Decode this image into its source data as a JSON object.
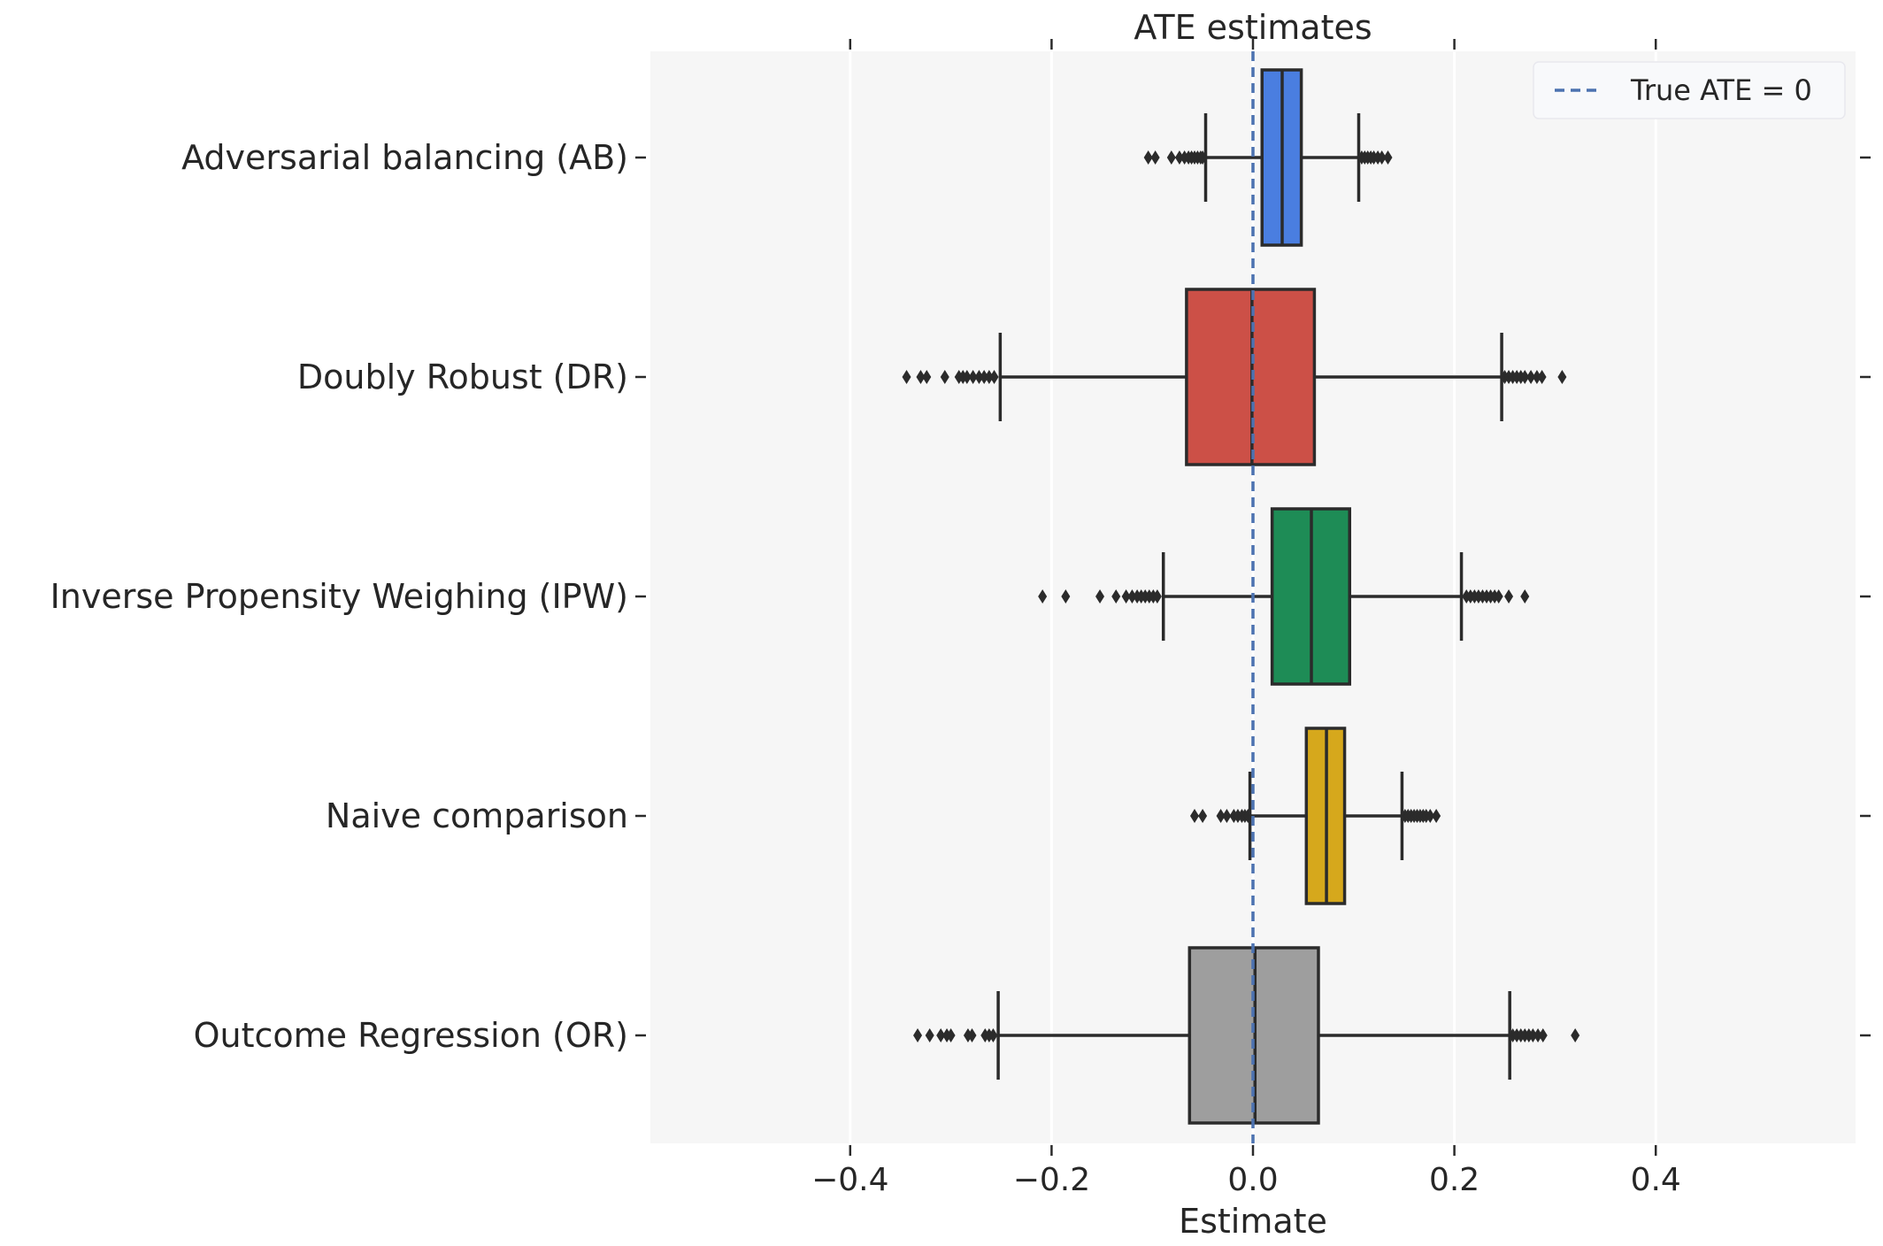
{
  "chart_data": {
    "type": "box",
    "orientation": "horizontal",
    "title": "ATE estimates",
    "xlabel": "Estimate",
    "ylabel": "",
    "xlim": [
      -0.6,
      0.6
    ],
    "xticks": [
      -0.4,
      -0.2,
      0.0,
      0.2,
      0.4
    ],
    "xtick_labels": [
      "−0.4",
      "−0.2",
      "0.0",
      "0.2",
      "0.4"
    ],
    "grid": true,
    "reference_line": {
      "value": 0,
      "style": "dashed",
      "color": "#4c72b0",
      "label": "True ATE = 0"
    },
    "legend": {
      "position": "top-right",
      "entries": [
        "True ATE = 0"
      ]
    },
    "series": [
      {
        "name": "Adversarial balancing (AB)",
        "color": "#4a7ee0",
        "whisker_low": -0.047,
        "q1": 0.009,
        "median": 0.029,
        "q3": 0.048,
        "whisker_high": 0.105,
        "outliers": [
          -0.104,
          -0.097,
          -0.081,
          -0.073,
          -0.068,
          -0.064,
          -0.061,
          -0.058,
          -0.055,
          -0.052,
          -0.05,
          0.108,
          0.111,
          0.114,
          0.117,
          0.12,
          0.124,
          0.128,
          0.134
        ]
      },
      {
        "name": "Doubly Robust (DR)",
        "color": "#cc5047",
        "whisker_low": -0.251,
        "q1": -0.066,
        "median": -0.001,
        "q3": 0.061,
        "whisker_high": 0.247,
        "outliers": [
          -0.344,
          -0.33,
          -0.324,
          -0.306,
          -0.292,
          -0.288,
          -0.284,
          -0.278,
          -0.272,
          -0.267,
          -0.262,
          -0.257,
          0.25,
          0.254,
          0.258,
          0.262,
          0.266,
          0.27,
          0.276,
          0.282,
          0.287,
          0.307
        ]
      },
      {
        "name": "Inverse Propensity Weighing (IPW)",
        "color": "#1e8c56",
        "whisker_low": -0.089,
        "q1": 0.019,
        "median": 0.058,
        "q3": 0.096,
        "whisker_high": 0.207,
        "outliers": [
          -0.209,
          -0.186,
          -0.152,
          -0.136,
          -0.126,
          -0.12,
          -0.115,
          -0.111,
          -0.107,
          -0.103,
          -0.099,
          -0.095,
          0.212,
          0.216,
          0.22,
          0.224,
          0.228,
          0.232,
          0.236,
          0.24,
          0.244,
          0.254,
          0.27
        ]
      },
      {
        "name": "Naive comparison",
        "color": "#d6a81c",
        "whisker_low": -0.003,
        "q1": 0.053,
        "median": 0.073,
        "q3": 0.091,
        "whisker_high": 0.148,
        "outliers": [
          -0.058,
          -0.05,
          -0.032,
          -0.026,
          -0.019,
          -0.015,
          -0.011,
          -0.008,
          -0.005,
          0.151,
          0.154,
          0.157,
          0.16,
          0.163,
          0.166,
          0.169,
          0.172,
          0.176,
          0.182
        ]
      },
      {
        "name": "Outcome Regression (OR)",
        "color": "#9e9e9e",
        "whisker_low": -0.253,
        "q1": -0.063,
        "median": 0.002,
        "q3": 0.065,
        "whisker_high": 0.255,
        "outliers": [
          -0.333,
          -0.321,
          -0.31,
          -0.304,
          -0.3,
          -0.283,
          -0.279,
          -0.266,
          -0.262,
          -0.258,
          0.258,
          0.262,
          0.266,
          0.27,
          0.274,
          0.278,
          0.283,
          0.288,
          0.32
        ]
      }
    ]
  }
}
